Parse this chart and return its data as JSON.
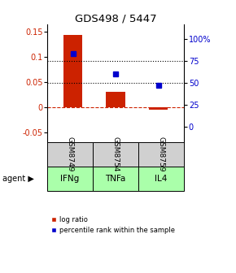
{
  "title": "GDS498 / 5447",
  "samples": [
    "GSM8749",
    "GSM8754",
    "GSM8759"
  ],
  "agents": [
    "IFNg",
    "TNFa",
    "IL4"
  ],
  "log_ratios": [
    0.145,
    0.03,
    -0.005
  ],
  "percentile_ranks_pct": [
    83,
    60,
    47
  ],
  "bar_color": "#cc2200",
  "dot_color": "#0000cc",
  "left_ylim": [
    -0.07,
    0.165
  ],
  "left_yticks": [
    -0.05,
    0.0,
    0.05,
    0.1,
    0.15
  ],
  "left_yticklabels": [
    "-0.05",
    "0",
    "0.05",
    "0.1",
    "0.15"
  ],
  "right_yticks": [
    0,
    25,
    50,
    75,
    100
  ],
  "right_yticklabels": [
    "0",
    "25",
    "50",
    "75",
    "100%"
  ],
  "right_ylim": [
    -17.5,
    116.0
  ],
  "dotted_lines_pct": [
    50,
    75
  ],
  "background_color": "#ffffff",
  "gray_cell_color": "#d0d0d0",
  "green_cell_color": "#aaffaa",
  "bar_width": 0.45,
  "figsize": [
    2.9,
    3.36
  ],
  "dpi": 100
}
